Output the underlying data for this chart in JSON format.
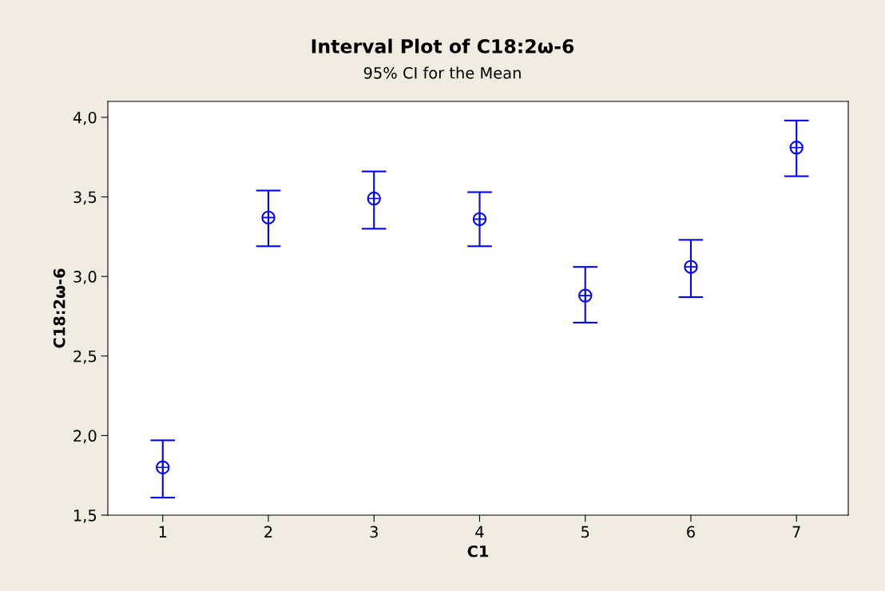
{
  "chart_data": {
    "type": "scatter",
    "title": "Interval Plot of C18:2ω-6",
    "subtitle": "95% CI for the Mean",
    "xlabel": "C1",
    "ylabel": "C18:2ω-6",
    "categories": [
      "1",
      "2",
      "3",
      "4",
      "5",
      "6",
      "7"
    ],
    "series": [
      {
        "color": "#0000ff",
        "values": [
          1.8,
          3.37,
          3.49,
          3.36,
          2.88,
          3.06,
          3.81
        ],
        "errors": [
          [
            1.61,
            1.97
          ],
          [
            3.19,
            3.54
          ],
          [
            3.3,
            3.66
          ],
          [
            3.19,
            3.53
          ],
          [
            2.71,
            3.06
          ],
          [
            2.87,
            3.23
          ],
          [
            3.63,
            3.98
          ]
        ]
      }
    ],
    "ylim": [
      1.5,
      4.1
    ],
    "yticks": [
      {
        "value": 1.5,
        "label": "1,5"
      },
      {
        "value": 2.0,
        "label": "2,0"
      },
      {
        "value": 2.5,
        "label": "2,5"
      },
      {
        "value": 3.0,
        "label": "3,0"
      },
      {
        "value": 3.5,
        "label": "3,5"
      },
      {
        "value": 4.0,
        "label": "4,0"
      }
    ],
    "marker": "circle",
    "grid": false,
    "legend": false
  }
}
